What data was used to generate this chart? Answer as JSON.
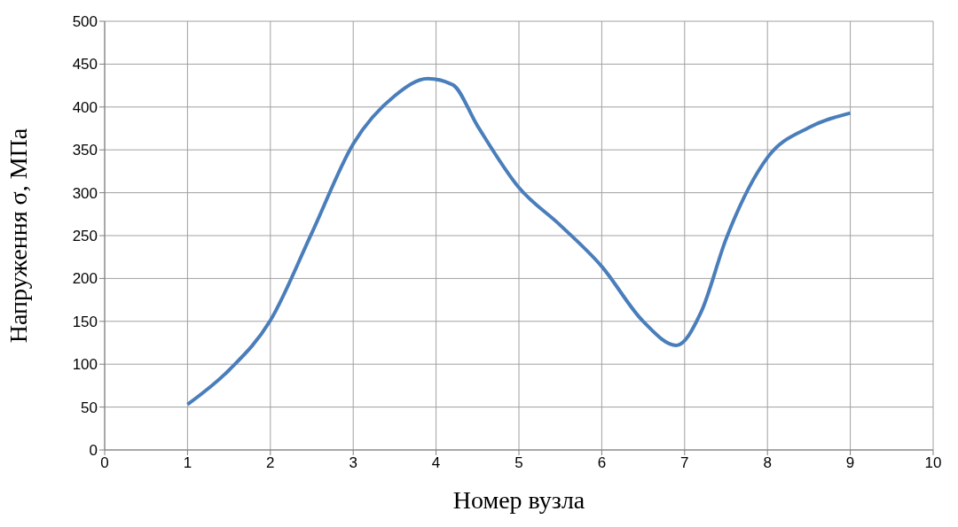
{
  "chart_data": {
    "type": "line",
    "xlabel": "Номер вузла",
    "ylabel": "Напруження σ, МПа",
    "x": [
      1,
      1.5,
      2,
      2.5,
      3,
      3.5,
      3.9,
      4.2,
      4.5,
      5,
      5.5,
      6,
      6.5,
      6.9,
      7.2,
      7.5,
      8,
      8.5,
      9
    ],
    "series": [
      {
        "color": "#4a7ebb",
        "values": [
          53,
          93,
          151,
          253,
          357,
          413,
          433,
          426,
          378,
          306,
          262,
          214,
          150,
          122,
          161,
          246,
          341,
          376,
          393
        ]
      }
    ],
    "xlim": [
      0,
      10
    ],
    "xticks": [
      0,
      1,
      2,
      3,
      4,
      5,
      6,
      7,
      8,
      9,
      10
    ],
    "ylim": [
      0,
      500
    ],
    "yticks": [
      0,
      50,
      100,
      150,
      200,
      250,
      300,
      350,
      400,
      450,
      500
    ],
    "grid": true,
    "marker": "none",
    "line_style": "solid"
  }
}
